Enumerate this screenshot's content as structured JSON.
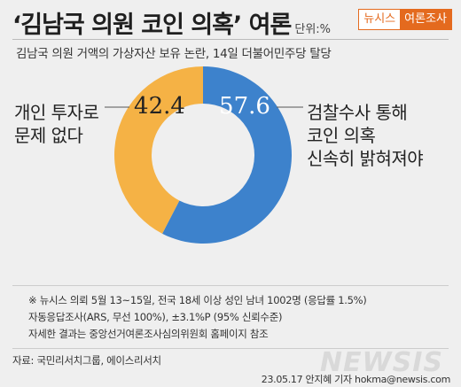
{
  "header": {
    "title": "‘김남국 의원 코인 의혹’ 여론",
    "unit": "단위:%",
    "brand_left": "뉴시스",
    "brand_right": "여론조사"
  },
  "subtitle": "김남국 의원 거액의 가상자산 보유 논란, 14일 더불어민주당 탈당",
  "chart_data": {
    "type": "pie",
    "style": "donut",
    "categories": [
      "검찰수사 통해 코인 의혹 신속히 밝혀져야",
      "개인 투자로 문제 없다"
    ],
    "values": [
      57.6,
      42.4
    ],
    "value_labels": [
      "57.6",
      "42.4"
    ],
    "colors": [
      "#3d82cc",
      "#f5b245"
    ],
    "labels_lines": [
      [
        "검찰수사 통해",
        "코인 의혹",
        "신속히 밝혀져야"
      ],
      [
        "개인 투자로",
        "문제 없다"
      ]
    ]
  },
  "notes": [
    "※ 뉴시스 의뢰 5월 13~15일, 전국 18세 이상 성인 남녀 1002명 (응답률 1.5%)",
    "자동응답조사(ARS, 무선 100%), ±3.1%P (95% 신뢰수준)",
    "자세한 결과는 중앙선거여론조사심의위원회 홈페이지 참조"
  ],
  "source": "자료: 국민리서치그룹, 에이스리서치",
  "watermark": "NEWSIS",
  "credit": "23.05.17 안지혜 기자 hokma@newsis.com"
}
